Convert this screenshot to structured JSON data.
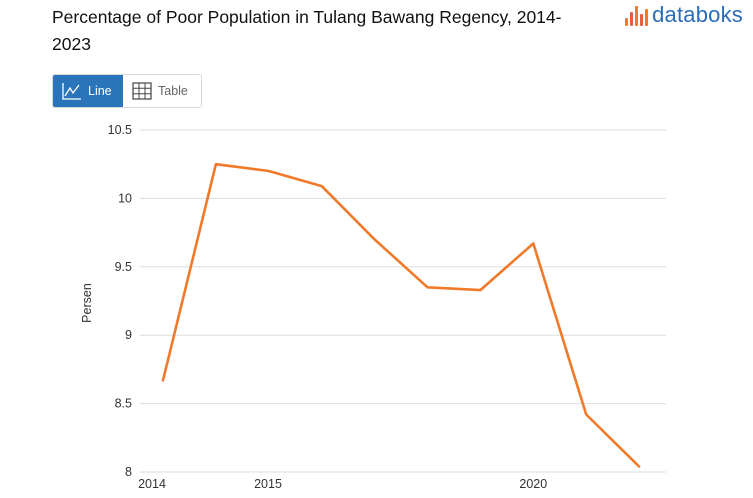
{
  "title": "Percentage of Poor Population in Tulang Bawang Regency, 2014-2023",
  "brand": {
    "name": "databoks",
    "color": "#2b6cb8",
    "icon": "databoks-logo-icon"
  },
  "view_toggle": {
    "line_label": "Line",
    "table_label": "Table",
    "selected": "Line",
    "line_icon": "line-chart-icon",
    "table_icon": "table-grid-icon",
    "active_color": "#2a74b9"
  },
  "chart_data": {
    "type": "line",
    "ylabel": "Persen",
    "ylim": [
      8,
      10.5
    ],
    "yticks": [
      8,
      8.5,
      9,
      9.5,
      10,
      10.5
    ],
    "ytick_labels": [
      "8",
      "8.5",
      "9",
      "9.5",
      "10",
      "10.5"
    ],
    "xtick_labels": [
      {
        "at": "2014",
        "label": "2014"
      },
      {
        "at": "2015",
        "label": "2015"
      },
      {
        "at": "2020",
        "label": "2020"
      }
    ],
    "grid": true,
    "series": [
      {
        "color": "#f07a2a",
        "points": [
          {
            "x": "2014",
            "y": 8.67
          },
          {
            "x": "2015 (1)",
            "y": 10.25
          },
          {
            "x": "2015 (2)",
            "y": 10.2
          },
          {
            "x": "2016",
            "y": 10.09
          },
          {
            "x": "2017",
            "y": 9.7
          },
          {
            "x": "2018",
            "y": 9.35
          },
          {
            "x": "2019",
            "y": 9.33
          },
          {
            "x": "2020",
            "y": 9.67
          },
          {
            "x": "2021",
            "y": 8.42
          },
          {
            "x": "2022",
            "y": 8.04
          }
        ]
      }
    ]
  }
}
